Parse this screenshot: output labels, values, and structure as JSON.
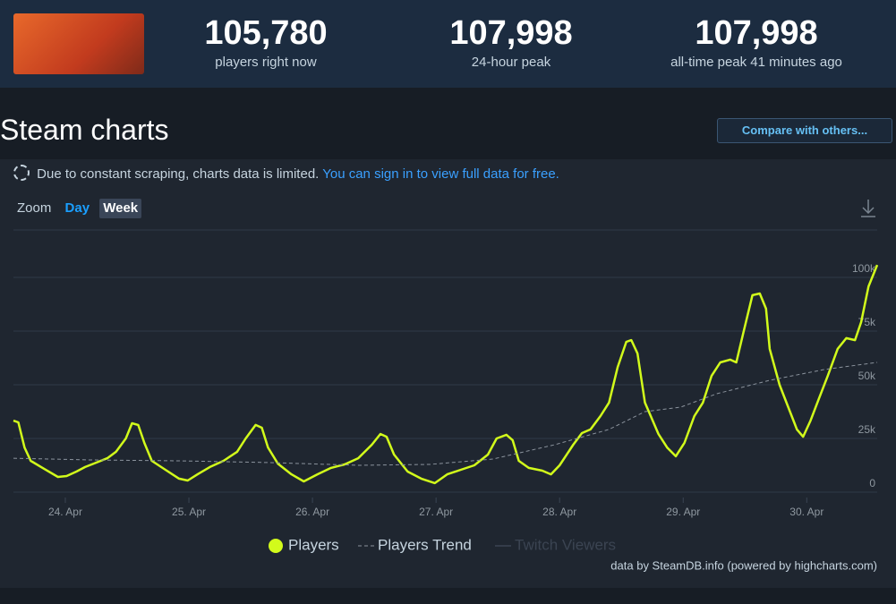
{
  "header": {
    "stats": [
      {
        "value": "105,780",
        "label": "players right now"
      },
      {
        "value": "107,998",
        "label": "24-hour peak"
      },
      {
        "value": "107,998",
        "label": "all-time peak 41 minutes ago"
      }
    ]
  },
  "section": {
    "title": "Steam charts",
    "compare_button": "Compare with others..."
  },
  "notice": {
    "text": "Due to constant scraping, charts data is limited.",
    "link": "You can sign in to view full data for free."
  },
  "zoom": {
    "label": "Zoom",
    "options": [
      "Day",
      "Week"
    ],
    "active_index": 1
  },
  "chart_data": {
    "type": "line",
    "xlim": [
      23.58,
      30.57
    ],
    "xticks": [
      {
        "value": 24,
        "label": "24. Apr"
      },
      {
        "value": 25,
        "label": "25. Apr"
      },
      {
        "value": 26,
        "label": "26. Apr"
      },
      {
        "value": 27,
        "label": "27. Apr"
      },
      {
        "value": 28,
        "label": "28. Apr"
      },
      {
        "value": 29,
        "label": "29. Apr"
      },
      {
        "value": 30,
        "label": "30. Apr"
      }
    ],
    "ylim": [
      0,
      125000
    ],
    "yticks": [
      0,
      {
        "value": 25000,
        "label": "25k"
      },
      {
        "value": 50000,
        "label": "50k"
      },
      {
        "value": 75000,
        "label": "75k"
      },
      {
        "value": 100000,
        "label": "100k"
      }
    ],
    "grid": true,
    "series": [
      {
        "name": "Players",
        "color": "#d2fb1b",
        "x": [
          23.58,
          23.62,
          23.67,
          23.72,
          23.83,
          23.94,
          24.01,
          24.09,
          24.16,
          24.23,
          24.34,
          24.41,
          24.49,
          24.54,
          24.59,
          24.64,
          24.7,
          24.81,
          24.92,
          24.99,
          25.07,
          25.17,
          25.28,
          25.39,
          25.46,
          25.54,
          25.59,
          25.64,
          25.72,
          25.83,
          25.93,
          26.04,
          26.15,
          26.26,
          26.37,
          26.48,
          26.55,
          26.6,
          26.66,
          26.77,
          26.88,
          26.99,
          27.09,
          27.2,
          27.31,
          27.42,
          27.49,
          27.57,
          27.62,
          27.67,
          27.75,
          27.86,
          27.93,
          28.0,
          28.11,
          28.18,
          28.25,
          28.33,
          28.4,
          28.47,
          28.54,
          28.58,
          28.63,
          28.69,
          28.8,
          28.87,
          28.94,
          29.01,
          29.09,
          29.16,
          29.23,
          29.3,
          29.38,
          29.43,
          29.49,
          29.56,
          29.62,
          29.67,
          29.7,
          29.78,
          29.85,
          29.92,
          29.97,
          30.03,
          30.1,
          30.17,
          30.25,
          30.32,
          30.39,
          30.44,
          30.5,
          30.57
        ],
        "values": [
          33300,
          32500,
          20800,
          14600,
          10800,
          7100,
          7500,
          9600,
          11700,
          13300,
          15800,
          18800,
          25000,
          32100,
          31300,
          22900,
          14600,
          10400,
          6300,
          5400,
          8300,
          11700,
          14600,
          18800,
          25000,
          31300,
          30000,
          20800,
          13300,
          8300,
          5000,
          8300,
          11300,
          12900,
          15800,
          22100,
          27100,
          25800,
          17500,
          9600,
          6300,
          4200,
          8300,
          10400,
          12500,
          17500,
          25000,
          26700,
          24200,
          14600,
          11300,
          10000,
          8300,
          12500,
          22100,
          27500,
          29200,
          35400,
          41700,
          58300,
          70000,
          70800,
          64600,
          41700,
          27100,
          20800,
          16700,
          22900,
          35400,
          41700,
          54200,
          60400,
          61700,
          60400,
          75000,
          91700,
          92500,
          85400,
          66700,
          50000,
          39600,
          29200,
          25800,
          33300,
          43800,
          54200,
          66700,
          71700,
          70800,
          79200,
          95800,
          105800
        ]
      },
      {
        "name": "Players Trend",
        "color": "#8b939d",
        "dashed": true,
        "x": [
          23.58,
          24.2,
          24.92,
          25.64,
          26.37,
          26.95,
          27.46,
          27.96,
          28.4,
          28.69,
          28.98,
          29.27,
          29.7,
          30.14,
          30.57
        ],
        "values": [
          15800,
          15000,
          14600,
          13800,
          12500,
          12900,
          15400,
          22100,
          29200,
          37500,
          39600,
          45800,
          52100,
          57100,
          60400
        ]
      },
      {
        "name": "Twitch Viewers",
        "color": "#3b4452",
        "visible": false
      }
    ]
  },
  "credit": "data by SteamDB.info (powered by highcharts.com)"
}
